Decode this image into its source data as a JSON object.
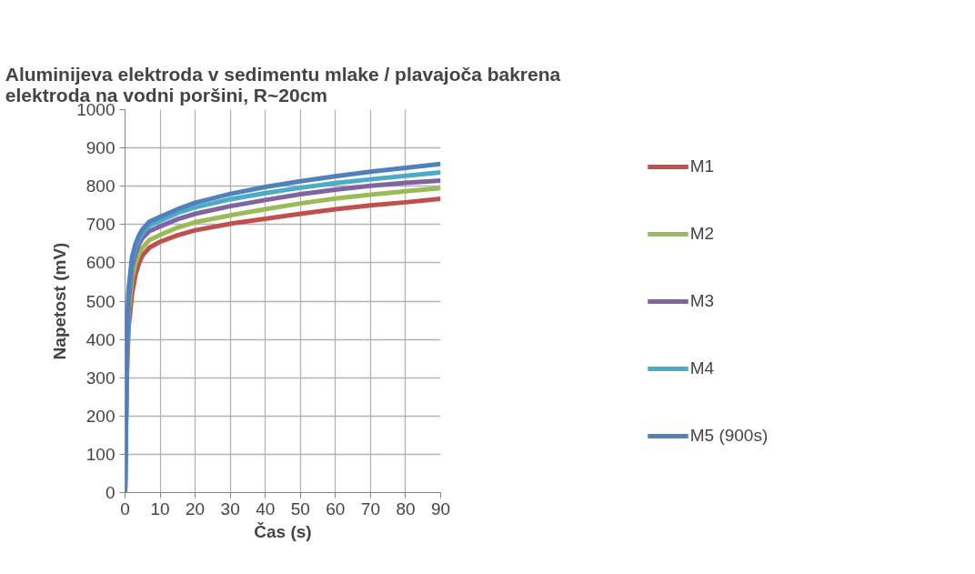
{
  "chart_data": {
    "type": "line",
    "title": "Aluminijeva elektroda v sedimentu mlake / plavajoča bakrena\nelektroda na vodni poršini, R~20cm",
    "xlabel": "Čas (s)",
    "ylabel": "Napetost (mV)",
    "x": [
      0,
      0.5,
      1,
      2,
      3,
      4,
      5,
      7,
      10,
      15,
      20,
      30,
      40,
      50,
      60,
      70,
      80,
      90
    ],
    "series": [
      {
        "name": "M1",
        "color": "#c0504d",
        "values": [
          0,
          300,
          430,
          520,
          570,
          600,
          620,
          640,
          655,
          672,
          685,
          702,
          715,
          728,
          740,
          750,
          758,
          767
        ]
      },
      {
        "name": "M2",
        "color": "#9bbb59",
        "values": [
          0,
          330,
          470,
          560,
          600,
          625,
          640,
          660,
          673,
          692,
          706,
          724,
          740,
          755,
          768,
          778,
          787,
          795
        ]
      },
      {
        "name": "M3",
        "color": "#8064a2",
        "values": [
          0,
          350,
          500,
          590,
          625,
          650,
          665,
          683,
          695,
          714,
          728,
          748,
          764,
          779,
          791,
          801,
          809,
          815
        ]
      },
      {
        "name": "M4",
        "color": "#4bacc6",
        "values": [
          0,
          370,
          520,
          605,
          640,
          662,
          678,
          697,
          710,
          730,
          745,
          766,
          782,
          796,
          808,
          818,
          827,
          836
        ]
      },
      {
        "name": "M5 (900s)",
        "color": "#4f81bd",
        "values": [
          0,
          380,
          530,
          615,
          650,
          672,
          688,
          708,
          720,
          740,
          757,
          780,
          798,
          813,
          826,
          838,
          848,
          858
        ]
      }
    ],
    "xlim": [
      0,
      90
    ],
    "xticks": [
      0,
      10,
      20,
      30,
      40,
      50,
      60,
      70,
      80,
      90
    ],
    "ylim": [
      0,
      1000
    ],
    "yticks": [
      0,
      100,
      200,
      300,
      400,
      500,
      600,
      700,
      800,
      900,
      1000
    ],
    "grid": true,
    "legend": "right",
    "marker": "none",
    "line_style": "solid"
  }
}
